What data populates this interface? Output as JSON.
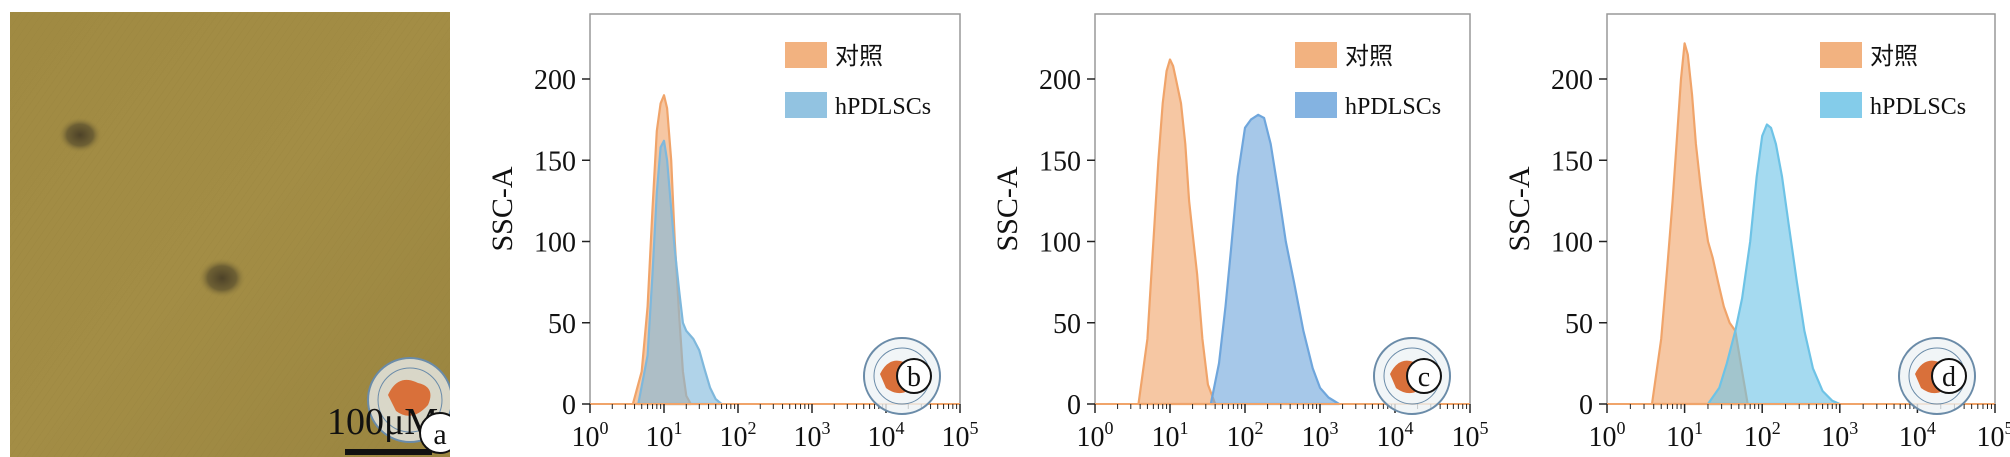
{
  "micrograph": {
    "scale_label": "100μM",
    "panel_letter": "a"
  },
  "chart_data": [
    {
      "type": "area",
      "panel_letter": "b",
      "ylabel": "SSC-A",
      "x_scale": "log",
      "xlim": [
        1,
        100000
      ],
      "ylim": [
        0,
        240
      ],
      "yticks": [
        0,
        50,
        100,
        150,
        200
      ],
      "xticks": [
        {
          "base": "10",
          "exp": "0"
        },
        {
          "base": "10",
          "exp": "1"
        },
        {
          "base": "10",
          "exp": "2"
        },
        {
          "base": "10",
          "exp": "3"
        },
        {
          "base": "10",
          "exp": "4"
        },
        {
          "base": "10",
          "exp": "5"
        }
      ],
      "legend_position": "top-right",
      "series": [
        {
          "name": "对照",
          "color": "#f0a46a",
          "x": [
            3.8,
            5,
            6,
            7,
            8,
            9,
            10,
            11,
            12.5,
            14,
            16,
            18,
            20,
            23
          ],
          "y": [
            0,
            20,
            60,
            120,
            168,
            185,
            190,
            182,
            150,
            100,
            55,
            20,
            5,
            0
          ]
        },
        {
          "name": "hPDLSCs",
          "color": "#7fb8dc",
          "x": [
            4.5,
            6,
            7,
            8,
            9,
            10,
            11,
            12.5,
            14,
            16,
            18,
            20,
            25,
            30,
            35,
            42,
            50,
            60
          ],
          "y": [
            0,
            30,
            80,
            130,
            158,
            162,
            150,
            120,
            95,
            70,
            50,
            45,
            40,
            33,
            22,
            10,
            3,
            0
          ]
        }
      ]
    },
    {
      "type": "area",
      "panel_letter": "c",
      "ylabel": "SSC-A",
      "x_scale": "log",
      "xlim": [
        1,
        100000
      ],
      "ylim": [
        0,
        240
      ],
      "yticks": [
        0,
        50,
        100,
        150,
        200
      ],
      "xticks": [
        {
          "base": "10",
          "exp": "0"
        },
        {
          "base": "10",
          "exp": "1"
        },
        {
          "base": "10",
          "exp": "2"
        },
        {
          "base": "10",
          "exp": "3"
        },
        {
          "base": "10",
          "exp": "4"
        },
        {
          "base": "10",
          "exp": "5"
        }
      ],
      "legend_position": "top-right",
      "series": [
        {
          "name": "对照",
          "color": "#f0a46a",
          "x": [
            3.8,
            5,
            6,
            7,
            8,
            9,
            10,
            11,
            12,
            14,
            16,
            18,
            20,
            23,
            27,
            32,
            40
          ],
          "y": [
            0,
            40,
            100,
            150,
            185,
            205,
            212,
            208,
            200,
            185,
            160,
            125,
            105,
            80,
            40,
            12,
            0
          ]
        },
        {
          "name": "hPDLSCs",
          "color": "#6fa6dc",
          "x": [
            35,
            45,
            55,
            65,
            80,
            100,
            120,
            150,
            180,
            220,
            280,
            350,
            450,
            600,
            800,
            1000,
            1300,
            1800
          ],
          "y": [
            0,
            25,
            60,
            95,
            140,
            170,
            175,
            178,
            176,
            160,
            130,
            100,
            75,
            45,
            22,
            10,
            4,
            0
          ]
        }
      ]
    },
    {
      "type": "area",
      "panel_letter": "d",
      "ylabel": "SSC-A",
      "x_scale": "log",
      "xlim": [
        1,
        100000
      ],
      "ylim": [
        0,
        240
      ],
      "yticks": [
        0,
        50,
        100,
        150,
        200
      ],
      "xticks": [
        {
          "base": "10",
          "exp": "0"
        },
        {
          "base": "10",
          "exp": "1"
        },
        {
          "base": "10",
          "exp": "2"
        },
        {
          "base": "10",
          "exp": "3"
        },
        {
          "base": "10",
          "exp": "4"
        },
        {
          "base": "10",
          "exp": "5"
        }
      ],
      "legend_position": "top-right",
      "series": [
        {
          "name": "对照",
          "color": "#f0a46a",
          "x": [
            3.8,
            5,
            6,
            7,
            8,
            9,
            10,
            11,
            12.5,
            14,
            16,
            18,
            20,
            23,
            27,
            32,
            38,
            45,
            55,
            65
          ],
          "y": [
            0,
            40,
            85,
            125,
            165,
            200,
            222,
            215,
            190,
            160,
            135,
            115,
            100,
            90,
            75,
            60,
            50,
            45,
            20,
            0
          ]
        },
        {
          "name": "hPDLSCs",
          "color": "#6ec3e6",
          "x": [
            20,
            28,
            35,
            45,
            55,
            70,
            85,
            100,
            115,
            130,
            150,
            180,
            220,
            280,
            350,
            450,
            600,
            800,
            1000
          ],
          "y": [
            0,
            10,
            25,
            45,
            65,
            100,
            140,
            165,
            172,
            170,
            160,
            140,
            110,
            75,
            45,
            22,
            8,
            2,
            0
          ]
        }
      ]
    }
  ]
}
